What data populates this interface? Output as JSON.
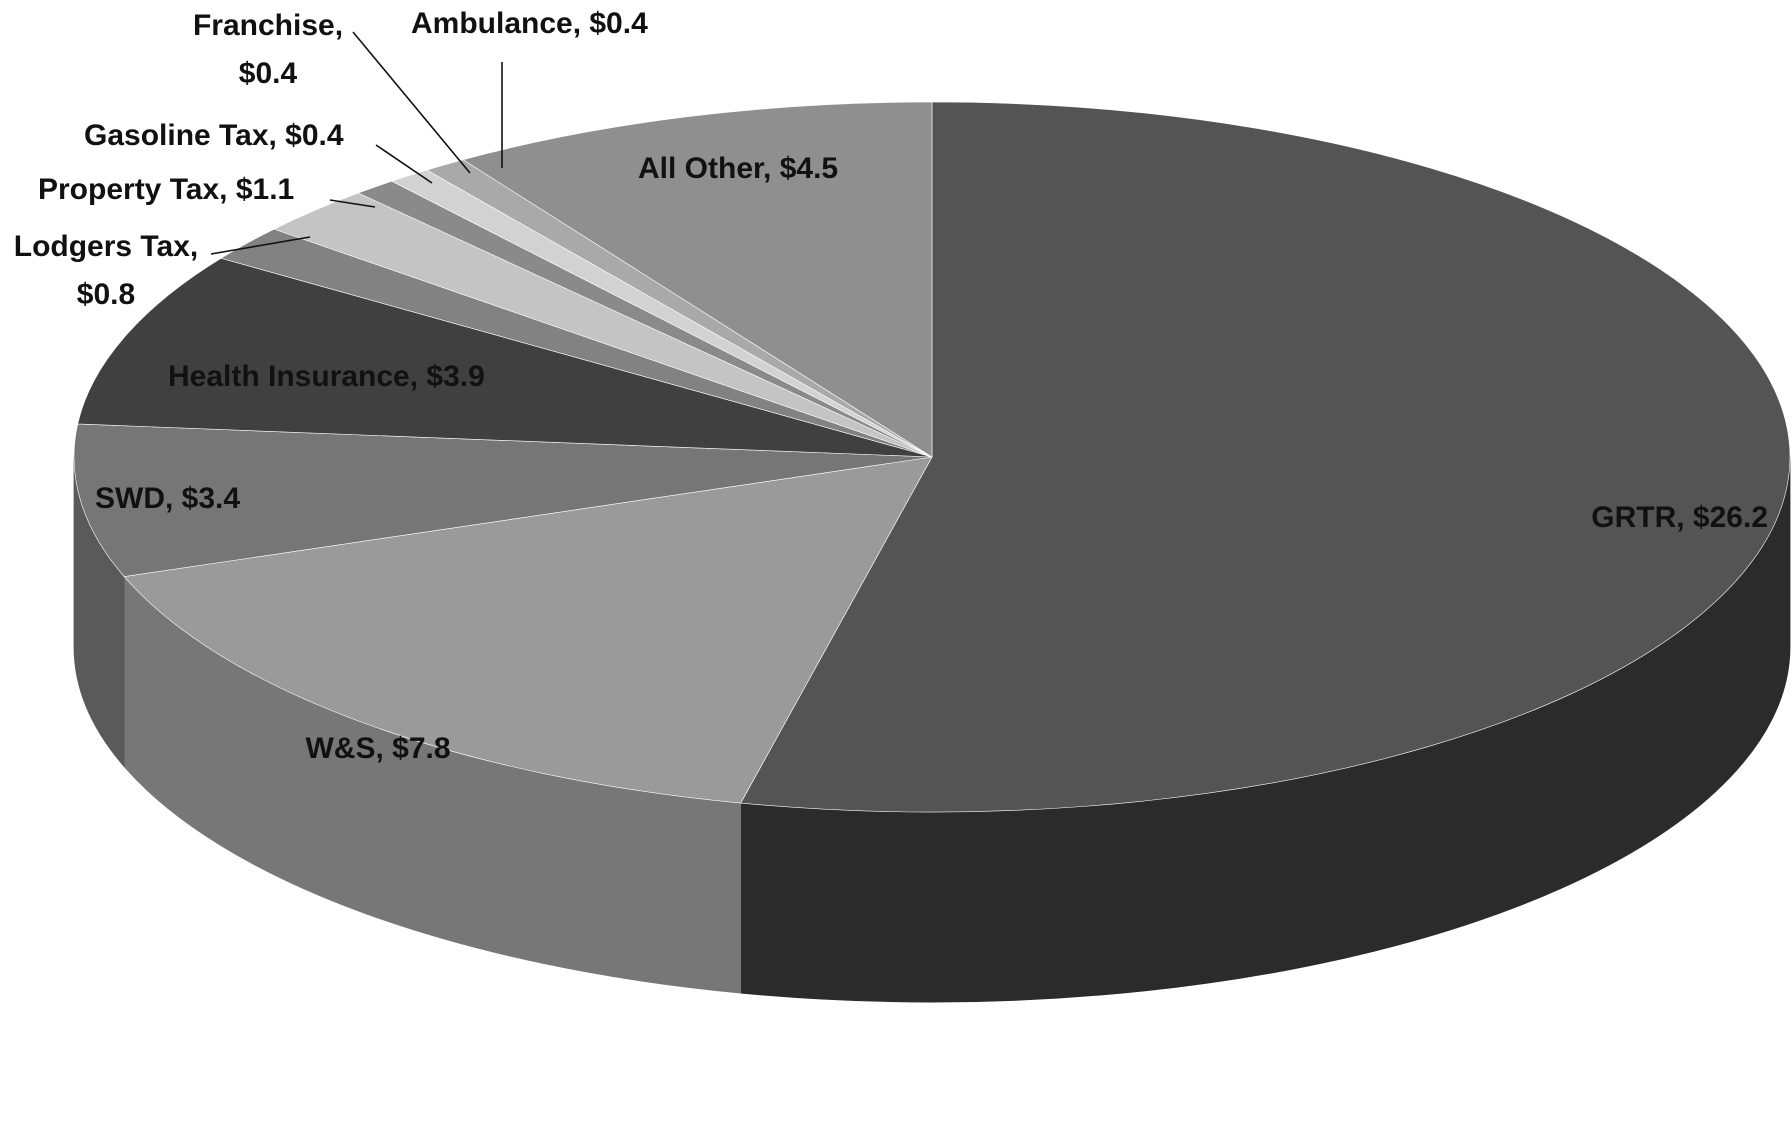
{
  "chart_data": {
    "type": "pie",
    "style": "3d",
    "title": "",
    "value_prefix": "$",
    "slices": [
      {
        "label": "GRTR",
        "value": 26.2,
        "display": "GRTR, $26.2",
        "color": "#545454",
        "side_color": "#2b2b2b"
      },
      {
        "label": "W&S",
        "value": 7.8,
        "display": "W&S, $7.8",
        "color": "#9a9a9a",
        "side_color": "#777777"
      },
      {
        "label": "SWD",
        "value": 3.4,
        "display": "SWD, $3.4",
        "color": "#767676",
        "side_color": "#5a5a5a"
      },
      {
        "label": "Health Insurance",
        "value": 3.9,
        "display": "Health Insurance, $3.9",
        "color": "#404040",
        "side_color": "#2a2a2a"
      },
      {
        "label": "Lodgers Tax",
        "value": 0.8,
        "display": [
          "Lodgers Tax,",
          "$0.8"
        ],
        "color": "#828282",
        "side_color": "#666666"
      },
      {
        "label": "Property Tax",
        "value": 1.1,
        "display": "Property Tax, $1.1",
        "color": "#c4c4c4",
        "side_color": "#a0a0a0"
      },
      {
        "label": "Gasoline Tax",
        "value": 0.4,
        "display": "Gasoline Tax, $0.4",
        "color": "#8a8a8a",
        "side_color": "#6c6c6c"
      },
      {
        "label": "Franchise",
        "value": 0.4,
        "display": [
          "Franchise,",
          "$0.4"
        ],
        "color": "#d2d2d2",
        "side_color": "#aaaaaa"
      },
      {
        "label": "Ambulance",
        "value": 0.4,
        "display": "Ambulance, $0.4",
        "color": "#a9a9a9",
        "side_color": "#888888"
      },
      {
        "label": "All Other",
        "value": 4.5,
        "display": "All Other, $4.5",
        "color": "#8f8f8f",
        "side_color": "#707070"
      }
    ],
    "legend": "none",
    "data_labels": "category, value"
  }
}
